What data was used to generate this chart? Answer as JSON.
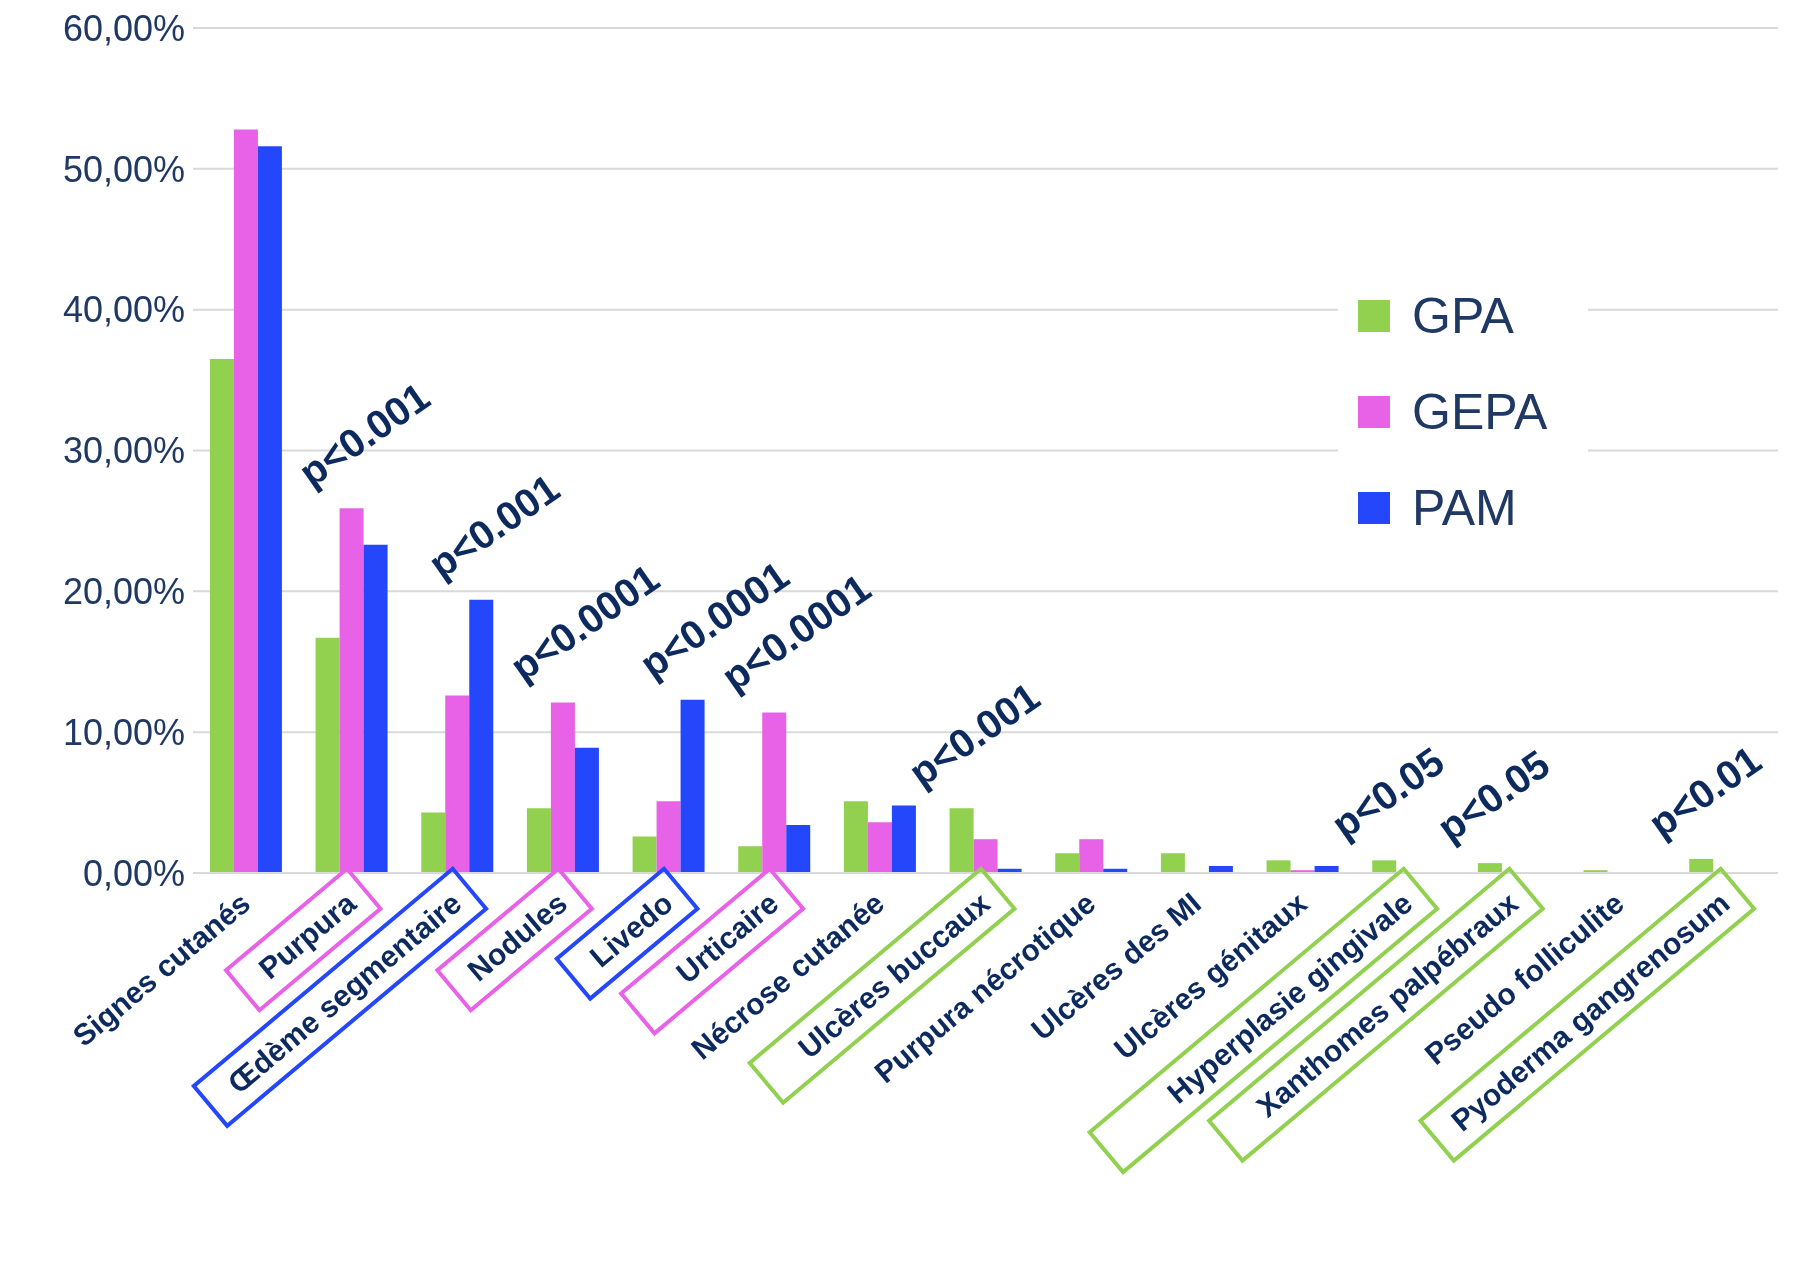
{
  "chart_data": {
    "type": "bar",
    "categories": [
      "Signes cutanés",
      "Purpura",
      "Œdème segmentaire",
      "Nodules",
      "Livedo",
      "Urticaire",
      "Nécrose cutanée",
      "Ulcères buccaux",
      "Purpura nécrotique",
      "Ulcères des MI",
      "Ulcères génitaux",
      "Hyperplasie gingivale",
      "Xanthomes palpébraux",
      "Pseudo folliculite",
      "Pyoderma gangrenosum"
    ],
    "series": [
      {
        "name": "GPA",
        "color": "#92d050",
        "values": [
          36.5,
          16.7,
          4.3,
          4.6,
          2.6,
          1.9,
          5.1,
          4.6,
          1.4,
          1.4,
          0.9,
          0.9,
          0.7,
          0.2,
          1.0
        ],
        "value_labels": [
          null,
          null,
          null,
          null,
          null,
          null,
          null,
          "p<0.001",
          null,
          null,
          null,
          "p<0.05",
          "p<0.05",
          null,
          "p<0.01"
        ]
      },
      {
        "name": "GEPA",
        "color": "#e862e8",
        "values": [
          52.8,
          25.9,
          12.6,
          12.1,
          5.1,
          11.4,
          3.6,
          2.4,
          2.4,
          0,
          0.2,
          0,
          0,
          0,
          0
        ],
        "value_labels": [
          null,
          "p<0.001",
          null,
          "p<0.0001",
          null,
          "p<0.0001",
          null,
          null,
          null,
          null,
          null,
          null,
          null,
          null,
          null
        ]
      },
      {
        "name": "PAM",
        "color": "#2447fb",
        "values": [
          51.6,
          23.3,
          19.4,
          8.9,
          12.3,
          3.4,
          4.8,
          0.3,
          0.3,
          0.5,
          0.5,
          0,
          0,
          0,
          0
        ],
        "value_labels": [
          null,
          null,
          "p<0.001",
          null,
          "p<0.0001",
          null,
          null,
          null,
          null,
          null,
          null,
          null,
          null,
          null,
          null
        ]
      }
    ],
    "ylim": [
      0,
      60
    ],
    "yticks": [
      {
        "value": 0,
        "label": "0,00%"
      },
      {
        "value": 10,
        "label": "10,00%"
      },
      {
        "value": 20,
        "label": "20,00%"
      },
      {
        "value": 30,
        "label": "30,00%"
      },
      {
        "value": 40,
        "label": "40,00%"
      },
      {
        "value": 50,
        "label": "50,00%"
      },
      {
        "value": 60,
        "label": "60,00%"
      }
    ],
    "grid": "y",
    "legend": "right"
  }
}
